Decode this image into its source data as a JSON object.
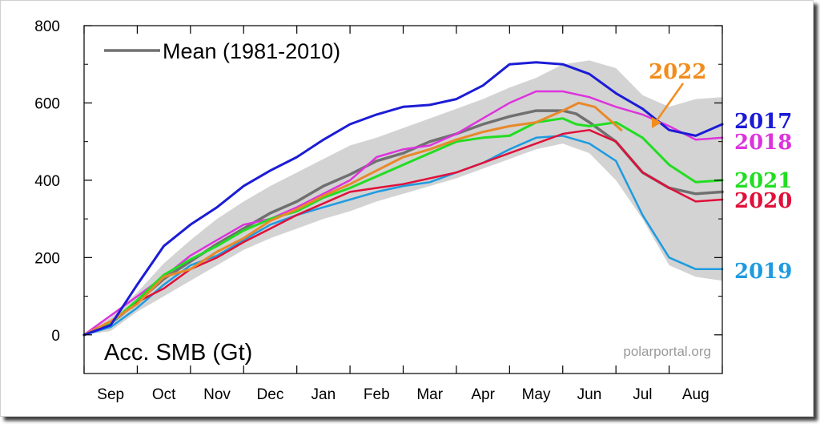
{
  "chart_data": {
    "type": "line",
    "title": "Acc. SMB (Gt)",
    "watermark": "polarportal.org",
    "x_tick_labels": [
      "Sep",
      "Oct",
      "Nov",
      "Dec",
      "Jan",
      "Feb",
      "Mar",
      "Apr",
      "May",
      "Jun",
      "Jul",
      "Aug"
    ],
    "x_unit": "month index (0 = 1 Sep, 12 = 31 Aug)",
    "xlim": [
      0,
      12
    ],
    "y_ticks": [
      0,
      200,
      400,
      600,
      800
    ],
    "ylim": [
      -100,
      800
    ],
    "band": {
      "name": "",
      "color": "#d3d3d3",
      "x": [
        0,
        0.5,
        1,
        1.5,
        2,
        2.5,
        3,
        3.5,
        4,
        4.5,
        5,
        5.5,
        6,
        6.5,
        7,
        7.5,
        8,
        8.5,
        9,
        9.5,
        10,
        10.5,
        11,
        11.5,
        12
      ],
      "upper": [
        0,
        45,
        110,
        185,
        245,
        300,
        345,
        385,
        420,
        455,
        490,
        510,
        535,
        560,
        585,
        610,
        640,
        665,
        700,
        710,
        690,
        620,
        590,
        610,
        615
      ],
      "lower": [
        0,
        10,
        60,
        100,
        140,
        180,
        220,
        250,
        275,
        300,
        320,
        345,
        365,
        385,
        405,
        430,
        455,
        480,
        495,
        470,
        400,
        300,
        180,
        150,
        140
      ]
    },
    "series": [
      {
        "name": "Mean (1981-2010)",
        "color": "#707070",
        "width": 3.5,
        "x": [
          0,
          0.5,
          1,
          1.5,
          2,
          2.5,
          3,
          3.5,
          4,
          4.5,
          5,
          5.5,
          6,
          6.5,
          7,
          7.5,
          8,
          8.5,
          9,
          9.25,
          9.5,
          10,
          10.5,
          11,
          11.5,
          12
        ],
        "y": [
          0,
          30,
          85,
          145,
          190,
          235,
          275,
          315,
          345,
          385,
          415,
          450,
          470,
          500,
          520,
          545,
          565,
          580,
          580,
          572,
          550,
          500,
          420,
          380,
          365,
          370
        ]
      },
      {
        "name": "2017",
        "color": "#1c1cd6",
        "width": 3,
        "x": [
          0,
          0.5,
          1,
          1.5,
          2,
          2.5,
          3,
          3.5,
          4,
          4.5,
          5,
          5.5,
          6,
          6.5,
          7,
          7.5,
          8,
          8.5,
          9,
          9.5,
          10,
          10.5,
          11,
          11.5,
          12
        ],
        "y": [
          0,
          25,
          130,
          230,
          285,
          330,
          385,
          425,
          460,
          505,
          545,
          570,
          590,
          595,
          610,
          645,
          700,
          705,
          700,
          675,
          625,
          585,
          530,
          515,
          545
        ]
      },
      {
        "name": "2018",
        "color": "#dd33dd",
        "width": 2.5,
        "x": [
          0,
          0.5,
          1,
          1.5,
          2,
          2.5,
          3,
          3.5,
          4,
          4.5,
          5,
          5.5,
          6,
          6.5,
          7,
          7.5,
          8,
          8.5,
          9,
          9.5,
          10,
          10.5,
          11,
          11.5,
          12
        ],
        "y": [
          0,
          50,
          100,
          150,
          205,
          245,
          285,
          300,
          330,
          365,
          400,
          460,
          480,
          490,
          520,
          560,
          600,
          630,
          630,
          615,
          590,
          570,
          540,
          505,
          510
        ]
      },
      {
        "name": "2019",
        "color": "#1e9be0",
        "width": 2.5,
        "x": [
          0,
          0.5,
          1,
          1.5,
          2,
          2.5,
          3,
          3.5,
          4,
          4.5,
          5,
          5.5,
          6,
          6.5,
          7,
          7.5,
          8,
          8.5,
          9,
          9.5,
          10,
          10.5,
          11,
          11.5,
          12
        ],
        "y": [
          0,
          20,
          70,
          130,
          180,
          205,
          245,
          285,
          310,
          330,
          350,
          370,
          385,
          395,
          420,
          445,
          480,
          510,
          515,
          495,
          450,
          310,
          200,
          170,
          170
        ]
      },
      {
        "name": "2020",
        "color": "#e0103a",
        "width": 2.5,
        "x": [
          0,
          0.5,
          1,
          1.5,
          2,
          2.5,
          3,
          3.5,
          4,
          4.5,
          5,
          5.5,
          6,
          6.5,
          7,
          7.5,
          8,
          8.5,
          9,
          9.5,
          10,
          10.5,
          11,
          11.5,
          12
        ],
        "y": [
          0,
          35,
          85,
          120,
          170,
          200,
          240,
          275,
          310,
          340,
          370,
          380,
          390,
          405,
          420,
          445,
          470,
          495,
          520,
          530,
          500,
          420,
          380,
          345,
          350
        ]
      },
      {
        "name": "2021",
        "color": "#22dd22",
        "width": 3,
        "x": [
          0,
          0.5,
          1,
          1.5,
          2,
          2.5,
          3,
          3.5,
          4,
          4.5,
          5,
          5.5,
          6,
          6.5,
          7,
          7.5,
          8,
          8.5,
          9,
          9.25,
          9.5,
          10,
          10.5,
          11,
          11.5,
          12
        ],
        "y": [
          0,
          30,
          90,
          155,
          195,
          230,
          270,
          300,
          320,
          355,
          380,
          410,
          440,
          470,
          500,
          510,
          515,
          550,
          560,
          545,
          540,
          550,
          510,
          440,
          395,
          400
        ]
      },
      {
        "name": "2022",
        "color": "#e8892a",
        "width": 3,
        "x": [
          0,
          0.5,
          1,
          1.5,
          2,
          2.5,
          3,
          3.5,
          4,
          4.5,
          5,
          5.5,
          6,
          6.5,
          7,
          7.5,
          8,
          8.5,
          9,
          9.3,
          9.6,
          9.85,
          10.1
        ],
        "y": [
          0,
          35,
          80,
          150,
          170,
          215,
          250,
          295,
          325,
          360,
          390,
          425,
          460,
          480,
          505,
          525,
          540,
          550,
          580,
          600,
          590,
          560,
          530
        ]
      }
    ],
    "legend": {
      "entries": [
        "Mean (1981-2010)"
      ],
      "position": "top-left"
    },
    "year_labels": [
      {
        "text": "2022",
        "color": "#f28c1c"
      },
      {
        "text": "2017",
        "color": "#1a1ad6"
      },
      {
        "text": "2018",
        "color": "#dd33dd"
      },
      {
        "text": "2021",
        "color": "#22dd22"
      },
      {
        "text": "2020",
        "color": "#e0103a"
      },
      {
        "text": "2019",
        "color": "#1e9be0"
      }
    ],
    "arrow_color": "#f28c1c",
    "grid": false
  }
}
